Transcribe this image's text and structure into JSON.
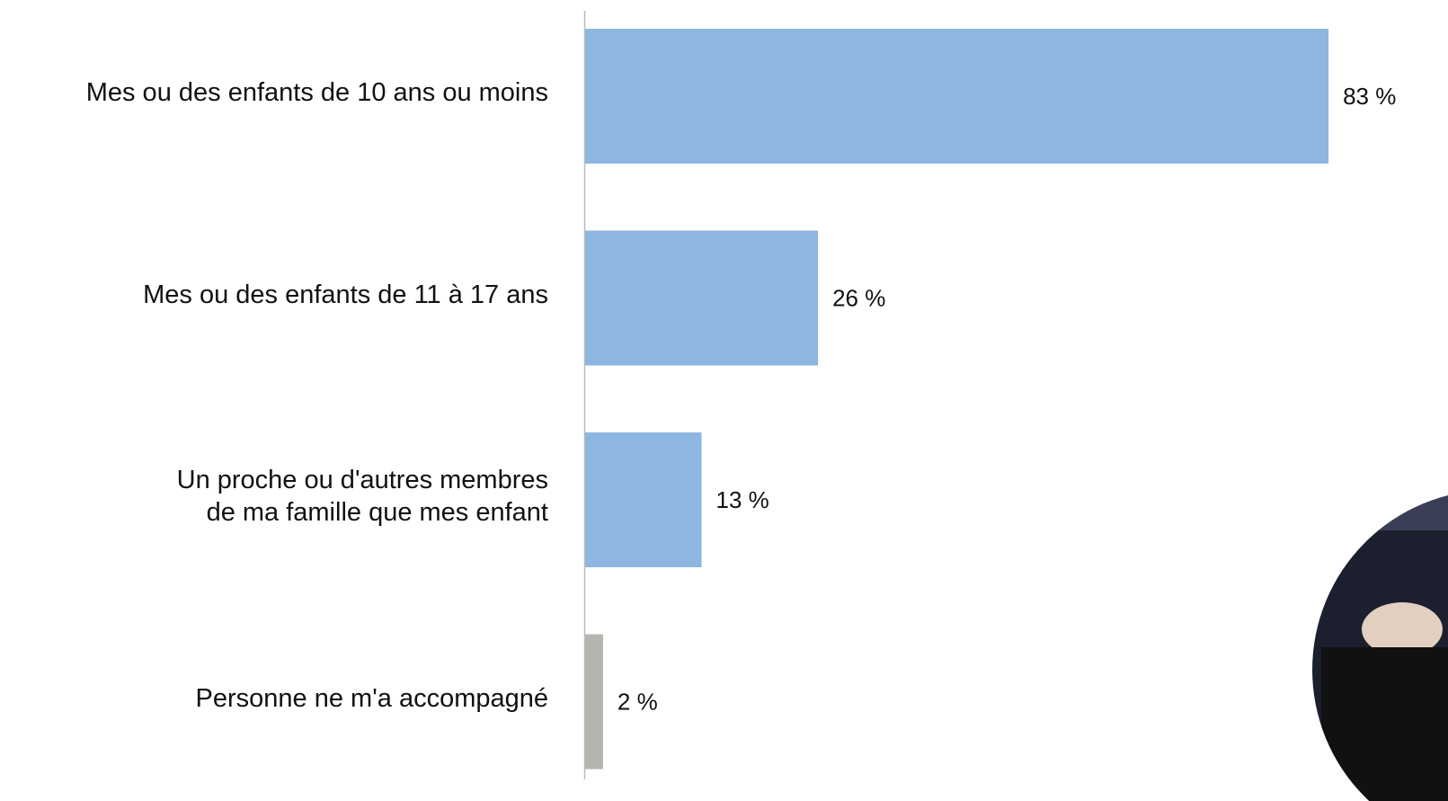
{
  "chart_data": {
    "type": "bar",
    "orientation": "horizontal",
    "categories": [
      "Mes ou des enfants de 10 ans ou moins",
      "Mes ou des enfants de 11 à 17 ans",
      "Un proche ou d'autres membres\nde ma famille que mes enfant",
      "Personne ne m'a accompagné"
    ],
    "values": [
      83,
      26,
      13,
      2
    ],
    "value_labels": [
      "83 %",
      "26 %",
      "13 %",
      "2 %"
    ],
    "colors": [
      "#8db6e0",
      "#8db6e0",
      "#8db6e0",
      "#b5b5b0"
    ]
  }
}
